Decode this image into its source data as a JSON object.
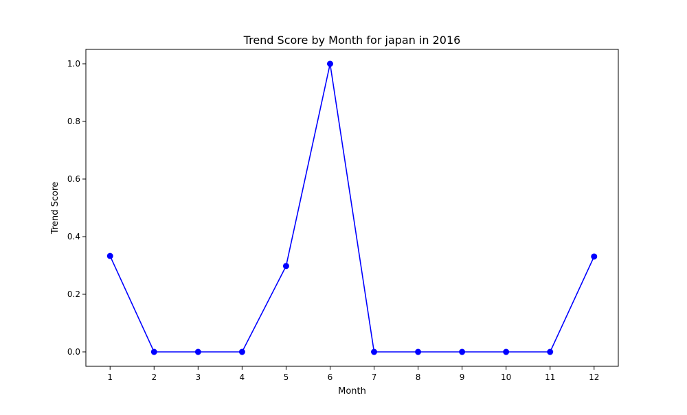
{
  "chart_data": {
    "type": "line",
    "title": "Trend Score by Month for japan in 2016",
    "xlabel": "Month",
    "ylabel": "Trend Score",
    "x": [
      1,
      2,
      3,
      4,
      5,
      6,
      7,
      8,
      9,
      10,
      11,
      12
    ],
    "series": [
      {
        "values": [
          0.333,
          0.0,
          0.0,
          0.0,
          0.298,
          1.0,
          0.0,
          0.0,
          0.0,
          0.0,
          0.0,
          0.331
        ],
        "color": "#0000ff",
        "marker": "circle"
      }
    ],
    "xticks": [
      "1",
      "2",
      "3",
      "4",
      "5",
      "6",
      "7",
      "8",
      "9",
      "10",
      "11",
      "12"
    ],
    "yticks": [
      "0.0",
      "0.2",
      "0.4",
      "0.6",
      "0.8",
      "1.0"
    ],
    "ytick_values": [
      0.0,
      0.2,
      0.4,
      0.6,
      0.8,
      1.0
    ],
    "xlim": [
      0.45,
      12.55
    ],
    "ylim": [
      -0.05,
      1.05
    ],
    "grid": false,
    "legend": false
  }
}
